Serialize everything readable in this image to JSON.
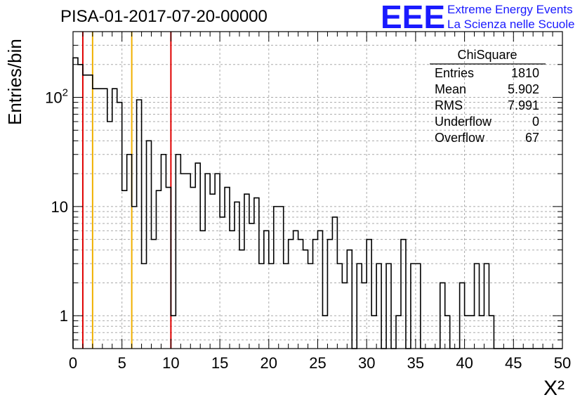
{
  "logo": {
    "mark": "EEE",
    "line1": "Extreme Energy Events",
    "line2": "La Scienza nelle Scuole",
    "color": "#1a1aff"
  },
  "chart_data": {
    "type": "bar",
    "style": "step-histogram",
    "title": "PISA-01-2017-07-20-00000",
    "xlabel": "X²",
    "ylabel": "Entries/bin",
    "xlim": [
      0,
      50
    ],
    "ylim": [
      0.5,
      400
    ],
    "log_y": true,
    "grid": true,
    "bin_width": 0.5,
    "xticks": [
      "0",
      "5",
      "10",
      "15",
      "20",
      "25",
      "30",
      "35",
      "40",
      "45",
      "50"
    ],
    "yticks": [
      {
        "value": 1,
        "label": "1"
      },
      {
        "value": 10,
        "label": "10"
      },
      {
        "value": 100,
        "label": "10",
        "sup": "2"
      }
    ],
    "values": [
      230,
      200,
      160,
      160,
      120,
      120,
      120,
      60,
      120,
      90,
      14,
      30,
      10,
      95,
      3,
      40,
      5,
      14,
      30,
      15,
      1,
      30,
      20,
      20,
      15,
      25,
      6,
      20,
      13,
      20,
      8,
      15,
      6,
      11,
      4,
      13,
      7,
      12,
      3,
      6,
      3,
      10,
      10,
      3,
      5,
      6,
      5,
      4,
      3,
      5,
      6,
      1,
      5,
      8,
      3,
      2,
      4,
      0.4,
      3,
      2,
      5,
      1,
      3,
      0.4,
      3,
      0.4,
      1,
      5,
      0.4,
      3,
      3,
      0.4,
      0.4,
      0.4,
      0.4,
      2,
      1,
      0.4,
      0.4,
      2,
      1,
      1,
      3,
      1,
      3,
      1,
      0.4,
      0.4,
      0.4,
      0.4,
      0.4,
      0.4,
      0.4,
      0.4,
      0.4,
      0.4,
      0.4,
      0.4,
      0.4,
      0.4
    ],
    "vertical_lines": [
      {
        "x": 1,
        "color": "#e00000",
        "style": "solid"
      },
      {
        "x": 2,
        "color": "#f0b000",
        "style": "solid"
      },
      {
        "x": 6,
        "color": "#f0b000",
        "style": "solid"
      },
      {
        "x": 10,
        "color": "#e00000",
        "style": "solid"
      }
    ],
    "stats_box": {
      "title": "ChiSquare",
      "rows": [
        {
          "label": "Entries",
          "value": "1810"
        },
        {
          "label": "Mean",
          "value": "5.902"
        },
        {
          "label": "RMS",
          "value": "7.991"
        },
        {
          "label": "Underflow",
          "value": "0"
        },
        {
          "label": "Overflow",
          "value": "67"
        }
      ]
    }
  }
}
